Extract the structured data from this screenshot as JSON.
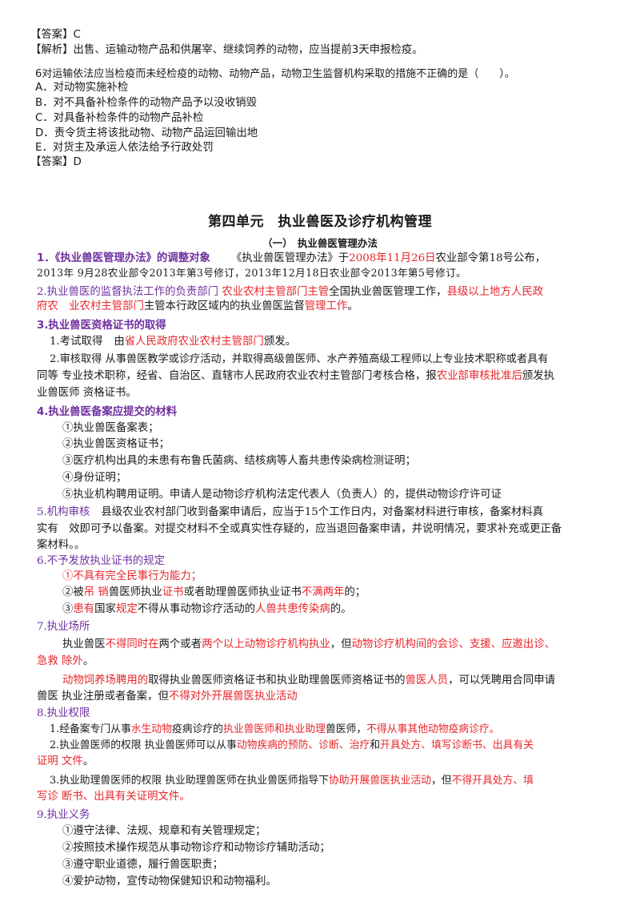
{
  "top": {
    "answer5": "【答案】C",
    "analysis5": "【解析】出售、运输动物产品和供屠宰、继续饲养的动物，应当提前3天申报检疫。",
    "q6": "6对运输依法应当检疫而未经检疫的动物、动物产品，动物卫生监督机构采取的措施不正确的是（　　）。",
    "q6_options": [
      "A．对动物实施补检",
      "B．对不具备补检条件的动物产品予以没收销毁",
      "C．对具备补检条件的动物产品补检",
      "D．责令货主将该批动物、动物产品运回输出地",
      "E．对货主及承运人依法给予行政处罚"
    ],
    "answer6": "【答案】D"
  },
  "unit": {
    "title": "第四单元　执业兽医及诊疗机构管理",
    "subtitle": "（一）　执业兽医管理办法"
  },
  "s1": {
    "head": "1．《执业兽医管理办法》的调整对象",
    "a": "《执业兽医管理办法》于",
    "date": "2008年11月26日",
    "b": "农业部令第18号公布，",
    "line2": "2013年 9月28农业部令2013年第3号修订，2013年12月18日农业部令2013年第5号修订。"
  },
  "s2": {
    "head": "2.执业兽医的监督执法工作的负责部门",
    "r1": "农业农村主管部门主管",
    "a": "全国执业兽医管理工作，",
    "r2": "县级以上地方人民政",
    "r3": "府农",
    "r4": "业农村主管部门",
    "b": "主管本行政区域内的执业兽医监督",
    "r5": "管理工作",
    "c": "。"
  },
  "s3": {
    "head": "3.执业兽医资格证书的取得",
    "i1a": "1.考试取得",
    "i1b": "由",
    "i1r": "省人民政府农业农村主管部门",
    "i1c": "颁发。",
    "i2a": "2.审核取得",
    "i2b": "从事兽医教学或诊疗活动，并取得高级兽医师、水产养殖高级工程师以上专业技术职称或者具有",
    "i2c": "同等 专业技术职称，经省、自治区、直辖市人民政府农业农村主管部门考核合格，报",
    "i2r": "农业部审核批准后",
    "i2d": "颁发执",
    "i2e": "业兽医师 资格证书。"
  },
  "s4": {
    "head": "4.执业兽医备案应提交的材料",
    "items": [
      "①执业兽医备案表；",
      "②执业兽医资格证书；",
      "③医疗机构出具的未患有布鲁氏菌病、结核病等人畜共患传染病检测证明；",
      "④身份证明；",
      "⑤执业机构聘用证明。申请人是动物诊疗机构法定代表人（负责人）的，提供动物诊疗许可证"
    ]
  },
  "s5": {
    "head": "5.机构审核",
    "a": "县级农业农村部门收到备案申请后，应当于15个工作日内，对备案材料进行审核，备案材料真",
    "b": "实有　效即可予以备案。对提交材料不全或真实性存疑的，应当退回备案申请，并说明情况，要求补充或更正备",
    "c": "案材料。。"
  },
  "s6": {
    "head": "6.不予发放执业证书的规定",
    "i1": "①不具有完全民事行为能力；",
    "i2a": "②被",
    "i2r1": "吊 销",
    "i2b": "兽医师执业",
    "i2r2": "证书",
    "i2c": "或者助理兽医师执业证书",
    "i2r3": "不满两年",
    "i2d": "的；",
    "i3a": "③",
    "i3r1": "患有",
    "i3b": "国家",
    "i3r2": "规定",
    "i3c": "不得从事动物诊疗活动的",
    "i3r3": "人兽共患传染病",
    "i3d": "的。"
  },
  "s7": {
    "head": "7.执业场所",
    "p1a": "执业兽医",
    "p1r1": "不得同时在",
    "p1b": "两个或者",
    "p1r2": "两个以上动物诊疗机构执业",
    "p1c": "，但",
    "p1r3": "动物诊疗机构间的会诊、支援、应邀出诊、",
    "p1r4": "急救 除外",
    "p1d": "。",
    "p2r1": "动物饲养场聘用的",
    "p2a": "取得执业兽医师资格证书和执业助理兽医师资格证书的",
    "p2r2": "兽医人员",
    "p2b": "，可以凭聘用合同申请",
    "p2c": "兽医 执业注册或者备案，但",
    "p2r3": "不得对外开展兽医执业活动"
  },
  "s8": {
    "head": "8.执业权限",
    "i1a": "1.经备案专门从事",
    "i1r1": "水生动物",
    "i1b": "疫病诊疗的",
    "i1r2": "执业兽医师和执业助理",
    "i1c": "兽医师，",
    "i1r3": "不得从事其他动物疫病诊疗。",
    "i2a": "2.执业兽医师的权限 执业兽医师可以从事",
    "i2r1": "动物疾病的预防、诊断、治疗",
    "i2b": "和",
    "i2r2": "开具处方、填写诊断书、出具有关",
    "i2r3": "证明 文件",
    "i2c": "。",
    "i3a": "3.执业助理兽医师的权限 执业助理兽医师在执业兽医师指导下",
    "i3r1": "协助开展兽医执业活动",
    "i3b": "，但",
    "i3r2": "不得开具处方、填",
    "i3r3": "写诊 断书、出具有关证明文件。"
  },
  "s9": {
    "head": "9.执业义务",
    "items": [
      "①遵守法律、法规、规章和有关管理规定；",
      "②按照技术操作规范从事动物诊疗和动物诊疗辅助活动；",
      "③遵守职业道德，履行兽医职责；",
      "④爱护动物，宣传动物保健知识和动物福利。"
    ]
  }
}
